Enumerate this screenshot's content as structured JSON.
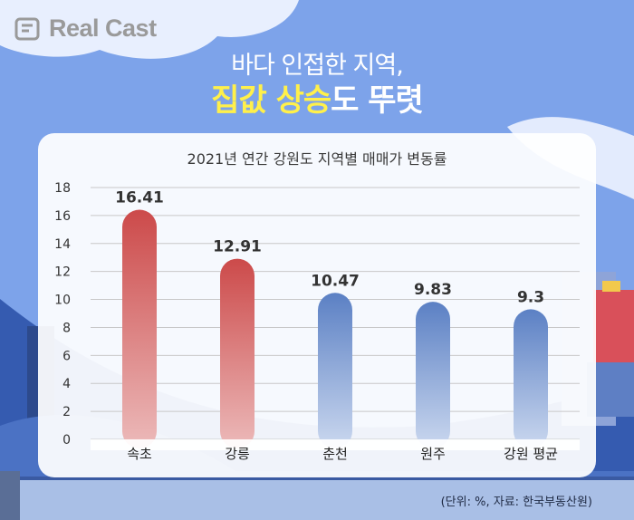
{
  "brand": {
    "logo_text": "Real Cast"
  },
  "headline": {
    "line1": "바다 인접한 지역,",
    "line2_highlight": "집값 상승",
    "line2_rest": "도 뚜렷"
  },
  "chart_data": {
    "type": "bar",
    "title": "2021년 연간 강원도 지역별 매매가 변동률",
    "categories": [
      "속초",
      "강릉",
      "춘천",
      "원주",
      "강원 평균"
    ],
    "values": [
      16.41,
      12.91,
      10.47,
      9.83,
      9.3
    ],
    "value_labels": [
      "16.41",
      "12.91",
      "10.47",
      "9.83",
      "9.3"
    ],
    "ylim": [
      0,
      18
    ],
    "yticks": [
      0,
      2,
      4,
      6,
      8,
      10,
      12,
      14,
      16,
      18
    ],
    "grid": true,
    "bar_colors": {
      "highlight": "#cc4a4a",
      "highlight_fade": "#ecbaba",
      "normal": "#5b80c4",
      "normal_fade": "#cbd8ef"
    }
  },
  "footer": {
    "source": "(단위: %, 자료: 한국부동산원)"
  },
  "colors": {
    "sky": "#7da3ea",
    "headline_highlight": "#fff04a"
  }
}
